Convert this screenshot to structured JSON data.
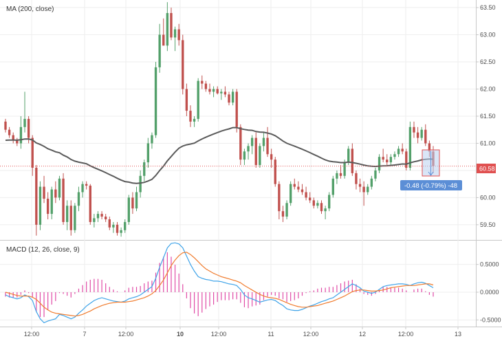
{
  "chart_data": [
    {
      "type": "candlestick",
      "title": "MA (200, close)",
      "y_ticks": [
        "63.50",
        "63.00",
        "62.50",
        "62.00",
        "61.50",
        "61.00",
        "60.50",
        "60.00",
        "59.50"
      ],
      "ylim": [
        59.22,
        63.64
      ],
      "x_ticks": [
        "12:00",
        "7",
        "12:00",
        "10",
        "12:00",
        "11",
        "12:00",
        "12",
        "12:00",
        "13"
      ],
      "current_price_label": "60.58",
      "current_price": 60.58,
      "measure_label": "-0.48 (-0.79%) -48",
      "colors": {
        "up": "#53a06a",
        "down": "#c0504d",
        "ma": "#5a5a5a",
        "price_line": "#e05050",
        "measure": "#5b8ed6"
      },
      "ohlc": [
        [
          61.4,
          61.45,
          61.2,
          61.25
        ],
        [
          61.25,
          61.3,
          61.1,
          61.15
        ],
        [
          61.15,
          61.2,
          61.0,
          61.05
        ],
        [
          61.05,
          61.1,
          60.95,
          61.0
        ],
        [
          61.0,
          61.5,
          60.9,
          61.3
        ],
        [
          61.3,
          61.95,
          61.2,
          61.45
        ],
        [
          61.45,
          61.5,
          61.0,
          61.1
        ],
        [
          61.1,
          61.15,
          60.4,
          60.55
        ],
        [
          60.55,
          60.6,
          59.3,
          59.5
        ],
        [
          59.5,
          60.3,
          59.4,
          60.2
        ],
        [
          60.2,
          60.4,
          59.9,
          59.98
        ],
        [
          59.98,
          60.1,
          59.6,
          59.7
        ],
        [
          59.7,
          60.2,
          59.6,
          60.15
        ],
        [
          60.15,
          60.3,
          59.9,
          60.0
        ],
        [
          60.0,
          60.4,
          59.95,
          60.35
        ],
        [
          60.35,
          60.45,
          59.5,
          59.55
        ],
        [
          59.55,
          59.95,
          59.4,
          59.85
        ],
        [
          59.85,
          59.95,
          59.3,
          59.4
        ],
        [
          59.4,
          59.9,
          59.35,
          59.85
        ],
        [
          59.85,
          60.2,
          59.75,
          60.1
        ],
        [
          60.1,
          60.3,
          60.0,
          60.25
        ],
        [
          60.25,
          60.3,
          60.15,
          60.22
        ],
        [
          60.22,
          60.25,
          59.5,
          59.55
        ],
        [
          59.55,
          59.7,
          59.45,
          59.62
        ],
        [
          59.62,
          59.75,
          59.55,
          59.7
        ],
        [
          59.7,
          59.75,
          59.6,
          59.65
        ],
        [
          59.65,
          59.7,
          59.55,
          59.6
        ],
        [
          59.6,
          59.65,
          59.4,
          59.45
        ],
        [
          59.45,
          59.55,
          59.35,
          59.5
        ],
        [
          59.5,
          59.55,
          59.3,
          59.35
        ],
        [
          59.35,
          59.45,
          59.28,
          59.4
        ],
        [
          59.4,
          59.6,
          59.35,
          59.55
        ],
        [
          59.55,
          60.05,
          59.5,
          60.0
        ],
        [
          60.0,
          60.1,
          59.7,
          59.8
        ],
        [
          59.8,
          60.2,
          59.75,
          60.1
        ],
        [
          60.1,
          60.5,
          60.0,
          60.4
        ],
        [
          60.4,
          60.7,
          60.3,
          60.65
        ],
        [
          60.65,
          61.1,
          60.55,
          61.0
        ],
        [
          61.0,
          61.2,
          60.9,
          61.15
        ],
        [
          61.15,
          62.5,
          61.1,
          62.4
        ],
        [
          62.4,
          63.2,
          62.3,
          63.0
        ],
        [
          63.0,
          63.3,
          62.8,
          62.8
        ],
        [
          62.8,
          63.6,
          62.7,
          63.4
        ],
        [
          63.4,
          63.5,
          62.9,
          62.95
        ],
        [
          62.95,
          63.15,
          62.7,
          63.1
        ],
        [
          63.1,
          63.2,
          62.8,
          62.9
        ],
        [
          62.9,
          63.0,
          61.9,
          62.0
        ],
        [
          62.0,
          62.1,
          61.5,
          61.6
        ],
        [
          61.6,
          61.7,
          61.3,
          61.4
        ],
        [
          61.4,
          61.5,
          61.3,
          61.45
        ],
        [
          61.45,
          62.2,
          61.4,
          62.15
        ],
        [
          62.15,
          62.25,
          62.0,
          62.1
        ],
        [
          62.1,
          62.15,
          61.95,
          62.0
        ],
        [
          62.0,
          62.1,
          61.9,
          61.95
        ],
        [
          61.95,
          62.05,
          61.85,
          62.0
        ],
        [
          62.0,
          62.05,
          61.9,
          61.92
        ],
        [
          61.92,
          62.0,
          61.8,
          61.95
        ],
        [
          61.95,
          62.05,
          61.85,
          61.9
        ],
        [
          61.9,
          61.95,
          61.7,
          61.75
        ],
        [
          61.75,
          62.0,
          61.7,
          61.95
        ],
        [
          61.95,
          62.0,
          61.2,
          61.3
        ],
        [
          61.3,
          61.35,
          60.6,
          60.7
        ],
        [
          60.7,
          60.9,
          60.6,
          60.85
        ],
        [
          60.85,
          61.0,
          60.7,
          60.95
        ],
        [
          60.95,
          61.15,
          60.8,
          61.1
        ],
        [
          61.1,
          61.2,
          60.55,
          60.6
        ],
        [
          60.6,
          61.0,
          60.55,
          60.95
        ],
        [
          60.95,
          61.2,
          60.85,
          61.1
        ],
        [
          61.1,
          61.3,
          60.75,
          60.8
        ],
        [
          60.8,
          60.9,
          60.55,
          60.7
        ],
        [
          60.7,
          60.75,
          60.2,
          60.25
        ],
        [
          60.25,
          60.3,
          59.6,
          59.75
        ],
        [
          59.75,
          59.85,
          59.55,
          59.65
        ],
        [
          59.65,
          59.95,
          59.6,
          59.9
        ],
        [
          59.9,
          60.3,
          59.85,
          60.25
        ],
        [
          60.25,
          60.35,
          60.15,
          60.2
        ],
        [
          60.2,
          60.3,
          60.1,
          60.15
        ],
        [
          60.15,
          60.25,
          60.05,
          60.1
        ],
        [
          60.1,
          60.2,
          59.95,
          60.0
        ],
        [
          60.0,
          60.1,
          59.9,
          59.95
        ],
        [
          59.95,
          60.0,
          59.8,
          59.85
        ],
        [
          59.85,
          59.95,
          59.8,
          59.9
        ],
        [
          59.9,
          59.95,
          59.7,
          59.75
        ],
        [
          59.75,
          59.85,
          59.6,
          59.8
        ],
        [
          59.8,
          60.1,
          59.75,
          60.05
        ],
        [
          60.05,
          60.4,
          60.0,
          60.35
        ],
        [
          60.35,
          60.5,
          60.25,
          60.45
        ],
        [
          60.45,
          60.6,
          60.35,
          60.4
        ],
        [
          60.4,
          60.7,
          60.35,
          60.65
        ],
        [
          60.65,
          60.95,
          60.6,
          60.9
        ],
        [
          60.9,
          61.0,
          60.4,
          60.45
        ],
        [
          60.45,
          60.5,
          60.15,
          60.25
        ],
        [
          60.25,
          60.35,
          60.1,
          60.2
        ],
        [
          60.2,
          60.3,
          59.85,
          60.1
        ],
        [
          60.1,
          60.25,
          60.05,
          60.2
        ],
        [
          60.2,
          60.4,
          60.15,
          60.35
        ],
        [
          60.35,
          60.55,
          60.3,
          60.5
        ],
        [
          60.5,
          60.8,
          60.45,
          60.75
        ],
        [
          60.75,
          60.9,
          60.65,
          60.7
        ],
        [
          60.7,
          60.8,
          60.6,
          60.65
        ],
        [
          60.65,
          60.8,
          60.6,
          60.75
        ],
        [
          60.75,
          60.85,
          60.7,
          60.8
        ],
        [
          60.8,
          60.95,
          60.75,
          60.9
        ],
        [
          60.9,
          61.0,
          60.8,
          60.85
        ],
        [
          60.85,
          60.9,
          60.5,
          60.55
        ],
        [
          60.55,
          61.4,
          60.5,
          61.3
        ],
        [
          61.3,
          61.4,
          61.1,
          61.2
        ],
        [
          61.2,
          61.3,
          61.0,
          61.1
        ],
        [
          61.1,
          61.3,
          61.05,
          61.25
        ],
        [
          61.25,
          61.35,
          60.95,
          61.0
        ],
        [
          61.0,
          61.05,
          60.75,
          60.85
        ],
        [
          60.85,
          60.95,
          60.45,
          60.58
        ]
      ]
    },
    {
      "type": "line",
      "title": "MACD (12, 26, close, 9)",
      "y_ticks": [
        "0.5000",
        "0.0000",
        "-0.5000"
      ],
      "ylim": [
        -0.62,
        0.93
      ],
      "colors": {
        "macd": "#3ea3e8",
        "signal": "#f07b2d",
        "histogram": "#e04aa6"
      },
      "macd": [
        -0.05,
        -0.08,
        -0.1,
        -0.12,
        -0.1,
        -0.05,
        -0.08,
        -0.15,
        -0.35,
        -0.48,
        -0.55,
        -0.52,
        -0.5,
        -0.48,
        -0.4,
        -0.42,
        -0.45,
        -0.48,
        -0.45,
        -0.38,
        -0.32,
        -0.25,
        -0.2,
        -0.15,
        -0.12,
        -0.1,
        -0.12,
        -0.14,
        -0.16,
        -0.17,
        -0.18,
        -0.16,
        -0.12,
        -0.1,
        -0.08,
        -0.05,
        0.0,
        0.05,
        0.1,
        0.25,
        0.45,
        0.62,
        0.8,
        0.88,
        0.89,
        0.87,
        0.8,
        0.65,
        0.5,
        0.38,
        0.28,
        0.25,
        0.23,
        0.22,
        0.2,
        0.2,
        0.19,
        0.17,
        0.15,
        0.14,
        0.12,
        0.05,
        -0.05,
        -0.1,
        -0.12,
        -0.15,
        -0.18,
        -0.16,
        -0.14,
        -0.13,
        -0.15,
        -0.2,
        -0.24,
        -0.3,
        -0.32,
        -0.33,
        -0.33,
        -0.31,
        -0.28,
        -0.25,
        -0.23,
        -0.2,
        -0.17,
        -0.15,
        -0.12,
        -0.1,
        -0.05,
        0.0,
        0.05,
        0.1,
        0.15,
        0.12,
        0.08,
        0.02,
        0.0,
        -0.02,
        0.0,
        0.05,
        0.1,
        0.12,
        0.13,
        0.14,
        0.15,
        0.15,
        0.14,
        0.12,
        0.15,
        0.17,
        0.18,
        0.16,
        0.12,
        0.08
      ],
      "signal": [
        0.0,
        -0.02,
        -0.04,
        -0.06,
        -0.07,
        -0.07,
        -0.07,
        -0.09,
        -0.13,
        -0.2,
        -0.27,
        -0.32,
        -0.36,
        -0.38,
        -0.39,
        -0.4,
        -0.41,
        -0.42,
        -0.43,
        -0.42,
        -0.4,
        -0.37,
        -0.34,
        -0.3,
        -0.27,
        -0.24,
        -0.22,
        -0.2,
        -0.19,
        -0.18,
        -0.18,
        -0.18,
        -0.17,
        -0.16,
        -0.14,
        -0.12,
        -0.1,
        -0.07,
        -0.03,
        0.03,
        0.12,
        0.22,
        0.35,
        0.48,
        0.58,
        0.66,
        0.71,
        0.72,
        0.68,
        0.62,
        0.55,
        0.48,
        0.42,
        0.38,
        0.34,
        0.31,
        0.28,
        0.26,
        0.24,
        0.22,
        0.2,
        0.17,
        0.12,
        0.08,
        0.04,
        0.0,
        -0.04,
        -0.07,
        -0.09,
        -0.1,
        -0.11,
        -0.13,
        -0.16,
        -0.19,
        -0.22,
        -0.24,
        -0.26,
        -0.27,
        -0.27,
        -0.26,
        -0.25,
        -0.24,
        -0.22,
        -0.2,
        -0.18,
        -0.16,
        -0.13,
        -0.1,
        -0.07,
        -0.03,
        0.01,
        0.03,
        0.04,
        0.04,
        0.03,
        0.02,
        0.02,
        0.03,
        0.04,
        0.06,
        0.08,
        0.09,
        0.1,
        0.11,
        0.12,
        0.12,
        0.12,
        0.13,
        0.14,
        0.15,
        0.15,
        0.13
      ]
    }
  ]
}
